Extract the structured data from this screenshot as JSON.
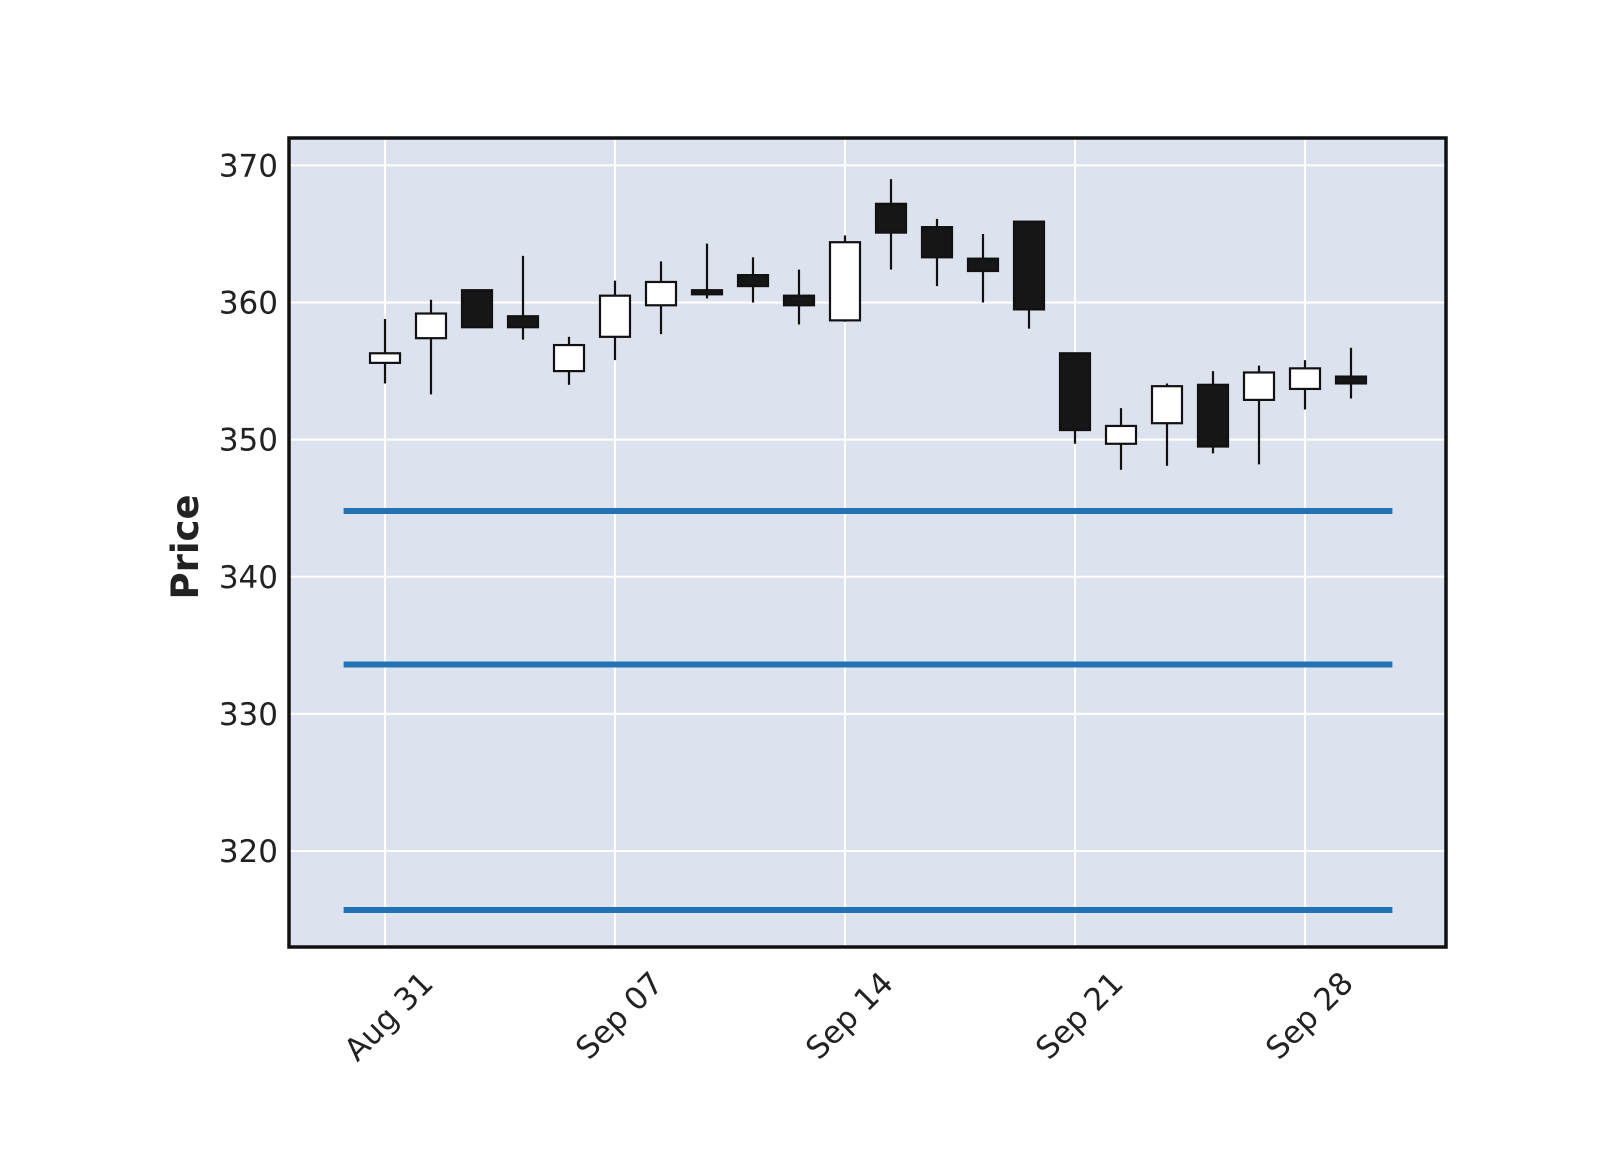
{
  "chart_data": {
    "type": "candlestick",
    "ylabel": "Price",
    "ylim": [
      313,
      372
    ],
    "yticks": [
      320,
      330,
      340,
      350,
      360,
      370
    ],
    "x_tick_labels": [
      {
        "index": 0,
        "label": "Aug 31"
      },
      {
        "index": 5,
        "label": "Sep 07"
      },
      {
        "index": 10,
        "label": "Sep 14"
      },
      {
        "index": 15,
        "label": "Sep 21"
      },
      {
        "index": 20,
        "label": "Sep 28"
      }
    ],
    "grid": true,
    "colors": {
      "plot_background": "#dde3ee",
      "up_body": "#ffffff",
      "down_body": "#161616",
      "edge": "#111111",
      "hline": "#2373b4"
    },
    "horizontal_lines": [
      344.8,
      333.6,
      315.7
    ],
    "candles": [
      {
        "date": "2020-08-31",
        "open": 355.6,
        "high": 358.8,
        "low": 354.1,
        "close": 356.3
      },
      {
        "date": "2020-09-01",
        "open": 357.4,
        "high": 360.2,
        "low": 353.3,
        "close": 359.2
      },
      {
        "date": "2020-09-02",
        "open": 360.9,
        "high": 360.9,
        "low": 358.2,
        "close": 358.2
      },
      {
        "date": "2020-09-03",
        "open": 359.0,
        "high": 363.4,
        "low": 357.3,
        "close": 358.2
      },
      {
        "date": "2020-09-04",
        "open": 355.0,
        "high": 357.5,
        "low": 354.0,
        "close": 356.9
      },
      {
        "date": "2020-09-08",
        "open": 357.5,
        "high": 361.6,
        "low": 355.8,
        "close": 360.5
      },
      {
        "date": "2020-09-09",
        "open": 359.8,
        "high": 363.0,
        "low": 357.7,
        "close": 361.5
      },
      {
        "date": "2020-09-10",
        "open": 360.9,
        "high": 364.3,
        "low": 360.3,
        "close": 360.6
      },
      {
        "date": "2020-09-11",
        "open": 362.0,
        "high": 363.3,
        "low": 360.0,
        "close": 361.2
      },
      {
        "date": "2020-09-12",
        "open": 360.5,
        "high": 362.4,
        "low": 358.4,
        "close": 359.8
      },
      {
        "date": "2020-09-14",
        "open": 358.7,
        "high": 364.9,
        "low": 358.6,
        "close": 364.4
      },
      {
        "date": "2020-09-15",
        "open": 367.2,
        "high": 369.0,
        "low": 362.4,
        "close": 365.1
      },
      {
        "date": "2020-09-16",
        "open": 365.5,
        "high": 366.1,
        "low": 361.2,
        "close": 363.3
      },
      {
        "date": "2020-09-17",
        "open": 363.2,
        "high": 365.0,
        "low": 360.0,
        "close": 362.3
      },
      {
        "date": "2020-09-18",
        "open": 365.9,
        "high": 365.9,
        "low": 358.1,
        "close": 359.5
      },
      {
        "date": "2020-09-21",
        "open": 356.3,
        "high": 356.3,
        "low": 349.7,
        "close": 350.7
      },
      {
        "date": "2020-09-22",
        "open": 349.7,
        "high": 352.3,
        "low": 347.8,
        "close": 351.0
      },
      {
        "date": "2020-09-23",
        "open": 351.2,
        "high": 354.1,
        "low": 348.1,
        "close": 353.9
      },
      {
        "date": "2020-09-24",
        "open": 354.0,
        "high": 355.0,
        "low": 349.0,
        "close": 349.5
      },
      {
        "date": "2020-09-25",
        "open": 352.9,
        "high": 355.4,
        "low": 348.2,
        "close": 354.9
      },
      {
        "date": "2020-09-28",
        "open": 353.7,
        "high": 355.8,
        "low": 352.2,
        "close": 355.2
      },
      {
        "date": "2020-09-29",
        "open": 354.6,
        "high": 356.7,
        "low": 353.0,
        "close": 354.1
      }
    ]
  }
}
